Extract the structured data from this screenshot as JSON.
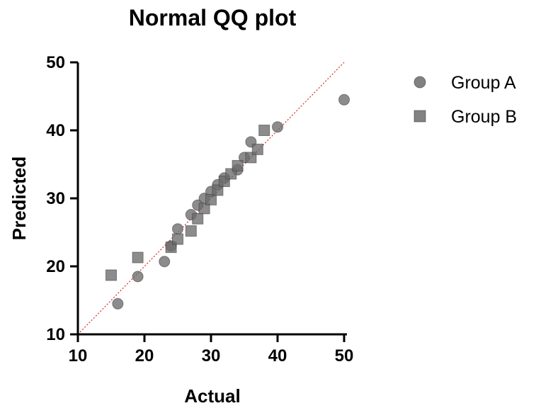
{
  "chart_data": {
    "type": "scatter",
    "title": "Normal QQ plot",
    "xlabel": "Actual",
    "ylabel": "Predicted",
    "xlim": [
      10,
      50
    ],
    "ylim": [
      10,
      50
    ],
    "xticks": [
      "10",
      "20",
      "30",
      "40",
      "50"
    ],
    "yticks": [
      "10",
      "20",
      "30",
      "40",
      "50"
    ],
    "grid": false,
    "legend_position": "top-right",
    "reference_line": {
      "x": [
        10,
        50
      ],
      "y": [
        10,
        50
      ],
      "style": "dotted",
      "color": "#d62728"
    },
    "series": [
      {
        "name": "Group A",
        "marker": "circle",
        "color": "#6b6b6b",
        "x": [
          16,
          19,
          23,
          24,
          25,
          27,
          28,
          29,
          30,
          31,
          32,
          34,
          35,
          36,
          40,
          50
        ],
        "y": [
          14.5,
          18.5,
          20.7,
          23.0,
          25.5,
          27.6,
          29.0,
          30.0,
          31.0,
          32.0,
          33.0,
          34.2,
          36.0,
          38.3,
          40.5,
          44.5
        ]
      },
      {
        "name": "Group B",
        "marker": "square",
        "color": "#6b6b6b",
        "x": [
          15,
          19,
          24,
          25,
          27,
          28,
          29,
          30,
          31,
          32,
          33,
          34,
          36,
          37,
          38
        ],
        "y": [
          18.7,
          21.3,
          22.8,
          24.0,
          25.2,
          27.0,
          28.5,
          29.8,
          31.2,
          32.5,
          33.6,
          34.8,
          36.0,
          37.2,
          40.0
        ]
      }
    ]
  }
}
